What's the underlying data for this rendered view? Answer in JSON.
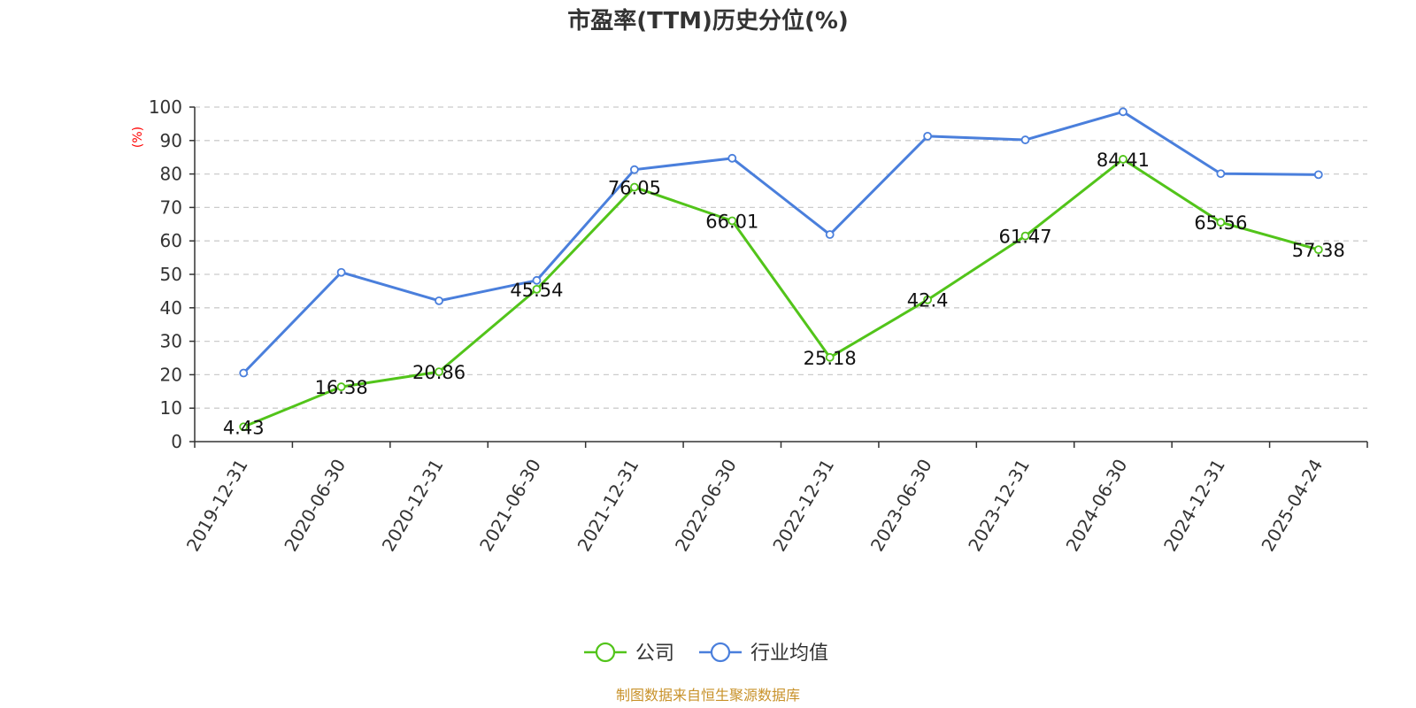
{
  "chart_data": {
    "type": "line",
    "title": "市盈率(TTM)历史分位(%)",
    "ylabel": "(%)",
    "xlabel": "",
    "ylim": [
      0,
      100
    ],
    "yticks": [
      0,
      10,
      20,
      30,
      40,
      50,
      60,
      70,
      80,
      90,
      100
    ],
    "categories": [
      "2019-12-31",
      "2020-06-30",
      "2020-12-31",
      "2021-06-30",
      "2021-12-31",
      "2022-06-30",
      "2022-12-31",
      "2023-06-30",
      "2023-12-31",
      "2024-06-30",
      "2024-12-31",
      "2025-04-24"
    ],
    "grid": true,
    "legend_position": "bottom-center",
    "series": [
      {
        "name": "公司",
        "color": "#52c41a",
        "show_labels": true,
        "values": [
          4.43,
          16.38,
          20.86,
          45.54,
          76.05,
          66.01,
          25.18,
          42.4,
          61.47,
          84.41,
          65.56,
          57.38
        ]
      },
      {
        "name": "行业均值",
        "color": "#4a7fdc",
        "show_labels": false,
        "values": [
          20.5,
          50.6,
          42.1,
          48.2,
          81.3,
          84.7,
          61.9,
          91.3,
          90.2,
          98.6,
          80.1,
          79.8
        ]
      }
    ],
    "source": "制图数据来自恒生聚源数据库"
  }
}
